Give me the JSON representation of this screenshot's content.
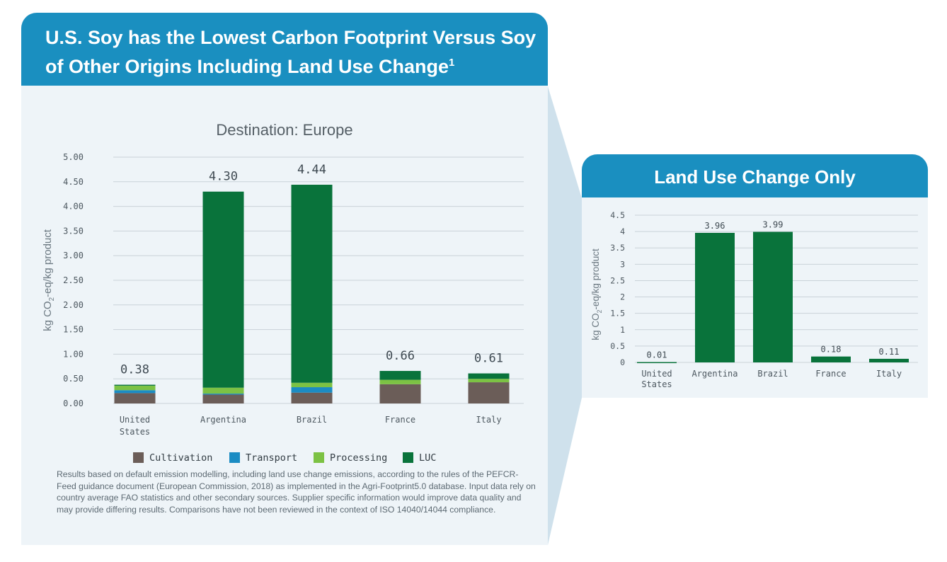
{
  "main": {
    "title": "U.S. Soy has the Lowest Carbon Footprint Versus Soy of Other Origins Including Land Use Change",
    "title_sup": "1",
    "footnote": "Results based on default emission modelling, including land use change emissions, according to the rules of the PEFCR-Feed guidance document (European Commission, 2018) as implemented in the Agri-Footprint5.0 database. Input data rely on country average FAO statistics and other secondary sources. Supplier specific information would improve data quality and may provide differing results. Comparisons have not been reviewed in the context of ISO 14040/14044 compliance."
  },
  "side": {
    "title": "Land Use Change Only"
  },
  "colors": {
    "header": "#1a8fc0",
    "Cultivation": "#6b5d58",
    "Transport": "#1b8cc3",
    "Processing": "#7cc244",
    "LUC": "#09733b"
  },
  "chart_data": [
    {
      "type": "bar",
      "stacked": true,
      "title": "Destination: Europe",
      "ylabel": "kg CO2-eq/kg product",
      "categories": [
        "United States",
        "Argentina",
        "Brazil",
        "France",
        "Italy"
      ],
      "ylim": [
        0,
        5
      ],
      "yticks": [
        "0.00",
        "0.50",
        "1.00",
        "1.50",
        "2.00",
        "2.50",
        "3.00",
        "3.50",
        "4.00",
        "4.50",
        "5.00"
      ],
      "totals": [
        "0.38",
        "4.30",
        "4.44",
        "0.66",
        "0.61"
      ],
      "series": [
        {
          "name": "Cultivation",
          "values": [
            0.21,
            0.18,
            0.22,
            0.39,
            0.43
          ]
        },
        {
          "name": "Transport",
          "values": [
            0.06,
            0.02,
            0.11,
            0.0,
            0.0
          ]
        },
        {
          "name": "Processing",
          "values": [
            0.09,
            0.12,
            0.09,
            0.09,
            0.07
          ]
        },
        {
          "name": "LUC",
          "values": [
            0.02,
            3.98,
            4.02,
            0.18,
            0.11
          ]
        }
      ],
      "grid": true,
      "legend": "bottom"
    },
    {
      "type": "bar",
      "ylabel": "kg CO2-eq/kg product",
      "categories": [
        "United States",
        "Argentina",
        "Brazil",
        "France",
        "Italy"
      ],
      "values": [
        0.01,
        3.96,
        3.99,
        0.18,
        0.11
      ],
      "labels": [
        "0.01",
        "3.96",
        "3.99",
        "0.18",
        "0.11"
      ],
      "ylim": [
        0,
        4.5
      ],
      "yticks": [
        "0",
        "0.5",
        "1",
        "1.5",
        "2",
        "2.5",
        "3",
        "3.5",
        "4",
        "4.5"
      ],
      "grid": true
    }
  ]
}
